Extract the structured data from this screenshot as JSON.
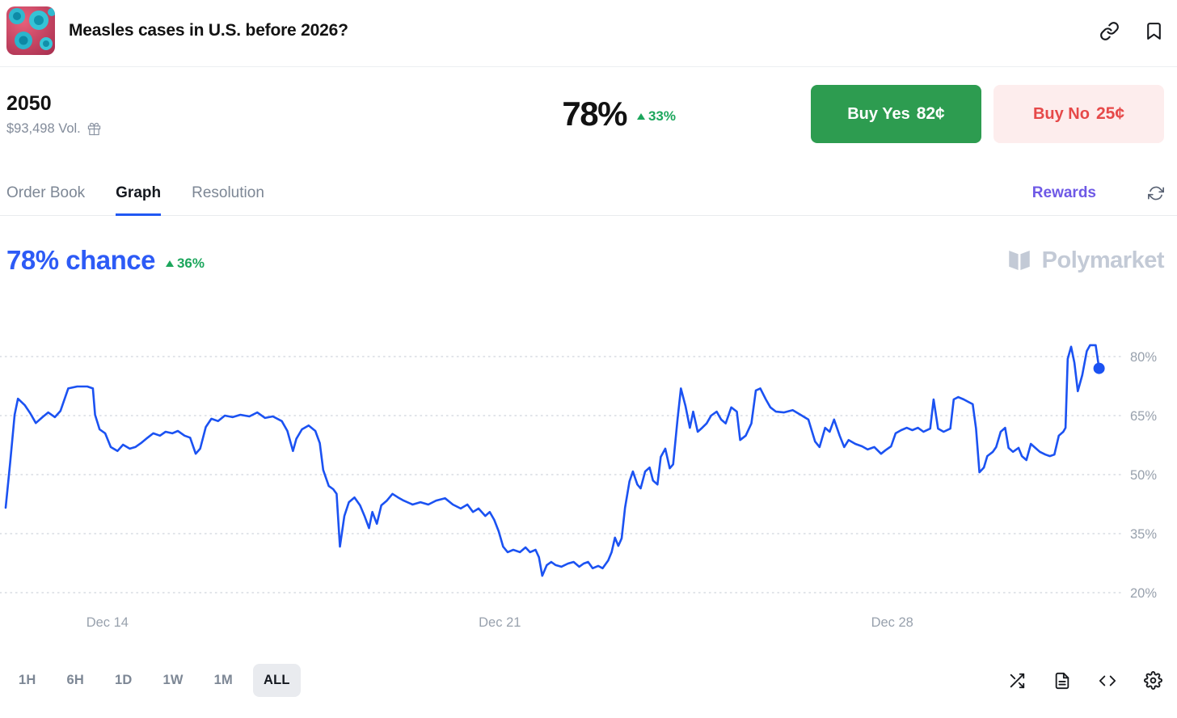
{
  "header": {
    "title": "Measles cases in U.S. before 2026?"
  },
  "market": {
    "outcome": "2050",
    "volume": "$93,498 Vol.",
    "chance": "78%",
    "change": "33%",
    "buy_yes": {
      "label": "Buy Yes",
      "price": "82¢"
    },
    "buy_no": {
      "label": "Buy No",
      "price": "25¢"
    }
  },
  "tabs": {
    "items": [
      {
        "label": "Order Book"
      },
      {
        "label": "Graph"
      },
      {
        "label": "Resolution"
      }
    ],
    "active": "Graph",
    "rewards": "Rewards"
  },
  "chart_header": {
    "chance": "78% chance",
    "change": "36%",
    "brand": "Polymarket"
  },
  "timeframes": {
    "items": [
      "1H",
      "6H",
      "1D",
      "1W",
      "1M",
      "ALL"
    ],
    "active": "ALL"
  },
  "icons": {
    "link-icon": "chain link",
    "bookmark-icon": "bookmark outline",
    "gift-icon": "gift box",
    "refresh-icon": "circular arrows",
    "polymarket-logo": "open book mark",
    "triangle-up-icon": "▲",
    "shuffle-icon": "crossing arrows",
    "document-icon": "file with text lines",
    "code-icon": "</>",
    "gear-icon": "settings gear"
  },
  "colors": {
    "accent_blue": "#2158f3",
    "chance_blue": "#2d5bf6",
    "line_blue": "#1b52f2",
    "positive_green": "#1ca65c",
    "buy_yes_bg": "#2d9c50",
    "buy_no_bg": "#fdeded",
    "buy_no_text": "#e64949",
    "rewards_purple": "#6e59e6",
    "muted_text": "#7d8795",
    "brand_gray": "#c3cad6"
  },
  "chart_data": {
    "type": "line",
    "title": "78% chance",
    "series_name": "Yes price (%)",
    "current_value": 78,
    "line_color": "#1b52f2",
    "grid": "dotted-horizontal",
    "legend": "none",
    "x_axis": {
      "labels": [
        "Dec 14",
        "Dec 21",
        "Dec 28"
      ],
      "label_positions": [
        0.091,
        0.442,
        0.793
      ]
    },
    "y_axis": {
      "ticks": [
        20,
        35,
        50,
        65,
        80
      ],
      "unit": "%",
      "range": [
        15,
        87
      ]
    },
    "points": [
      [
        0.0,
        41.6
      ],
      [
        0.004,
        52.9
      ],
      [
        0.008,
        65.2
      ],
      [
        0.011,
        69.3
      ],
      [
        0.017,
        67.7
      ],
      [
        0.022,
        65.6
      ],
      [
        0.027,
        63.1
      ],
      [
        0.033,
        64.6
      ],
      [
        0.038,
        65.8
      ],
      [
        0.044,
        64.6
      ],
      [
        0.049,
        66.2
      ],
      [
        0.056,
        71.9
      ],
      [
        0.064,
        72.4
      ],
      [
        0.073,
        72.4
      ],
      [
        0.078,
        71.9
      ],
      [
        0.08,
        65.2
      ],
      [
        0.084,
        61.5
      ],
      [
        0.089,
        60.5
      ],
      [
        0.094,
        57.0
      ],
      [
        0.1,
        56.0
      ],
      [
        0.105,
        57.6
      ],
      [
        0.111,
        56.6
      ],
      [
        0.116,
        57.0
      ],
      [
        0.121,
        58.0
      ],
      [
        0.127,
        59.4
      ],
      [
        0.132,
        60.5
      ],
      [
        0.138,
        59.9
      ],
      [
        0.143,
        60.9
      ],
      [
        0.149,
        60.5
      ],
      [
        0.154,
        61.1
      ],
      [
        0.16,
        59.9
      ],
      [
        0.165,
        59.4
      ],
      [
        0.17,
        55.3
      ],
      [
        0.174,
        56.6
      ],
      [
        0.179,
        62.1
      ],
      [
        0.184,
        64.2
      ],
      [
        0.19,
        63.6
      ],
      [
        0.196,
        65.0
      ],
      [
        0.203,
        64.6
      ],
      [
        0.21,
        65.2
      ],
      [
        0.218,
        64.8
      ],
      [
        0.225,
        65.8
      ],
      [
        0.232,
        64.4
      ],
      [
        0.239,
        64.8
      ],
      [
        0.247,
        63.6
      ],
      [
        0.252,
        61.1
      ],
      [
        0.257,
        56.0
      ],
      [
        0.26,
        59.1
      ],
      [
        0.265,
        61.5
      ],
      [
        0.271,
        62.5
      ],
      [
        0.277,
        61.1
      ],
      [
        0.281,
        58.0
      ],
      [
        0.284,
        51.2
      ],
      [
        0.289,
        47.1
      ],
      [
        0.293,
        46.3
      ],
      [
        0.296,
        45.1
      ],
      [
        0.299,
        31.7
      ],
      [
        0.303,
        39.5
      ],
      [
        0.307,
        43.0
      ],
      [
        0.312,
        44.2
      ],
      [
        0.317,
        42.2
      ],
      [
        0.321,
        39.5
      ],
      [
        0.325,
        36.4
      ],
      [
        0.328,
        40.5
      ],
      [
        0.332,
        37.5
      ],
      [
        0.336,
        42.2
      ],
      [
        0.341,
        43.4
      ],
      [
        0.346,
        45.1
      ],
      [
        0.351,
        44.2
      ],
      [
        0.356,
        43.4
      ],
      [
        0.364,
        42.4
      ],
      [
        0.371,
        43.0
      ],
      [
        0.378,
        42.4
      ],
      [
        0.385,
        43.4
      ],
      [
        0.393,
        44.0
      ],
      [
        0.4,
        42.4
      ],
      [
        0.407,
        41.4
      ],
      [
        0.413,
        42.4
      ],
      [
        0.418,
        40.5
      ],
      [
        0.423,
        41.4
      ],
      [
        0.429,
        39.5
      ],
      [
        0.433,
        40.5
      ],
      [
        0.437,
        38.5
      ],
      [
        0.441,
        35.6
      ],
      [
        0.445,
        31.7
      ],
      [
        0.449,
        30.3
      ],
      [
        0.454,
        30.9
      ],
      [
        0.46,
        30.3
      ],
      [
        0.465,
        31.5
      ],
      [
        0.469,
        30.3
      ],
      [
        0.474,
        30.9
      ],
      [
        0.477,
        29.0
      ],
      [
        0.48,
        24.3
      ],
      [
        0.484,
        27.0
      ],
      [
        0.488,
        27.8
      ],
      [
        0.492,
        27.0
      ],
      [
        0.497,
        26.6
      ],
      [
        0.503,
        27.4
      ],
      [
        0.508,
        27.8
      ],
      [
        0.513,
        26.6
      ],
      [
        0.517,
        27.4
      ],
      [
        0.521,
        27.8
      ],
      [
        0.525,
        26.2
      ],
      [
        0.53,
        26.8
      ],
      [
        0.534,
        26.2
      ],
      [
        0.539,
        28.2
      ],
      [
        0.542,
        30.3
      ],
      [
        0.545,
        34.0
      ],
      [
        0.548,
        31.9
      ],
      [
        0.551,
        33.8
      ],
      [
        0.554,
        41.6
      ],
      [
        0.558,
        48.3
      ],
      [
        0.561,
        50.8
      ],
      [
        0.565,
        47.5
      ],
      [
        0.568,
        46.5
      ],
      [
        0.572,
        50.8
      ],
      [
        0.576,
        51.8
      ],
      [
        0.579,
        48.5
      ],
      [
        0.583,
        47.5
      ],
      [
        0.586,
        54.5
      ],
      [
        0.59,
        56.6
      ],
      [
        0.594,
        51.6
      ],
      [
        0.597,
        52.6
      ],
      [
        0.601,
        64.2
      ],
      [
        0.604,
        71.9
      ],
      [
        0.608,
        67.5
      ],
      [
        0.612,
        61.9
      ],
      [
        0.615,
        66.0
      ],
      [
        0.619,
        60.9
      ],
      [
        0.623,
        61.9
      ],
      [
        0.627,
        63.0
      ],
      [
        0.631,
        65.0
      ],
      [
        0.636,
        66.0
      ],
      [
        0.64,
        64.0
      ],
      [
        0.644,
        63.0
      ],
      [
        0.649,
        67.1
      ],
      [
        0.654,
        66.0
      ],
      [
        0.657,
        58.8
      ],
      [
        0.662,
        59.9
      ],
      [
        0.667,
        63.0
      ],
      [
        0.671,
        71.4
      ],
      [
        0.675,
        71.9
      ],
      [
        0.68,
        69.1
      ],
      [
        0.684,
        67.1
      ],
      [
        0.689,
        66.0
      ],
      [
        0.696,
        65.8
      ],
      [
        0.704,
        66.4
      ],
      [
        0.711,
        65.2
      ],
      [
        0.718,
        64.0
      ],
      [
        0.724,
        58.4
      ],
      [
        0.728,
        57.0
      ],
      [
        0.733,
        61.9
      ],
      [
        0.737,
        60.9
      ],
      [
        0.741,
        64.0
      ],
      [
        0.746,
        59.9
      ],
      [
        0.75,
        57.0
      ],
      [
        0.754,
        58.8
      ],
      [
        0.76,
        57.8
      ],
      [
        0.766,
        57.2
      ],
      [
        0.771,
        56.4
      ],
      [
        0.777,
        57.0
      ],
      [
        0.783,
        55.3
      ],
      [
        0.787,
        56.2
      ],
      [
        0.792,
        57.2
      ],
      [
        0.796,
        60.5
      ],
      [
        0.801,
        61.3
      ],
      [
        0.806,
        61.9
      ],
      [
        0.811,
        61.3
      ],
      [
        0.816,
        61.9
      ],
      [
        0.821,
        60.9
      ],
      [
        0.827,
        61.7
      ],
      [
        0.83,
        69.1
      ],
      [
        0.834,
        61.7
      ],
      [
        0.839,
        60.9
      ],
      [
        0.845,
        61.7
      ],
      [
        0.848,
        69.1
      ],
      [
        0.852,
        69.7
      ],
      [
        0.857,
        69.1
      ],
      [
        0.861,
        68.5
      ],
      [
        0.865,
        67.9
      ],
      [
        0.868,
        61.7
      ],
      [
        0.871,
        50.6
      ],
      [
        0.875,
        51.8
      ],
      [
        0.878,
        54.7
      ],
      [
        0.883,
        55.8
      ],
      [
        0.886,
        57.0
      ],
      [
        0.89,
        60.9
      ],
      [
        0.894,
        61.9
      ],
      [
        0.897,
        56.8
      ],
      [
        0.901,
        55.8
      ],
      [
        0.906,
        56.8
      ],
      [
        0.909,
        54.7
      ],
      [
        0.913,
        53.7
      ],
      [
        0.917,
        57.8
      ],
      [
        0.921,
        56.8
      ],
      [
        0.925,
        55.8
      ],
      [
        0.93,
        55.1
      ],
      [
        0.934,
        54.7
      ],
      [
        0.938,
        55.1
      ],
      [
        0.942,
        59.9
      ],
      [
        0.946,
        60.9
      ],
      [
        0.948,
        61.9
      ],
      [
        0.95,
        79.4
      ],
      [
        0.953,
        82.5
      ],
      [
        0.956,
        78.4
      ],
      [
        0.959,
        71.2
      ],
      [
        0.963,
        75.3
      ],
      [
        0.967,
        81.4
      ],
      [
        0.97,
        82.9
      ],
      [
        0.975,
        82.9
      ],
      [
        0.978,
        77.0
      ]
    ]
  }
}
